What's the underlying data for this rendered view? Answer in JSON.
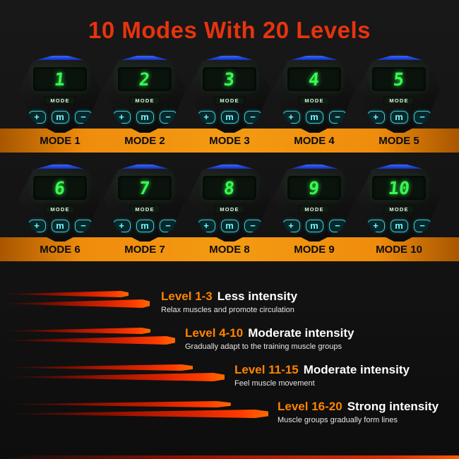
{
  "title": "10 Modes With 20 Levels",
  "device_ui": {
    "screen_label": "MODE",
    "plus": "+",
    "menu": "m",
    "minus": "−"
  },
  "modes": [
    {
      "number": "1",
      "label": "MODE 1"
    },
    {
      "number": "2",
      "label": "MODE 2"
    },
    {
      "number": "3",
      "label": "MODE 3"
    },
    {
      "number": "4",
      "label": "MODE 4"
    },
    {
      "number": "5",
      "label": "MODE 5"
    },
    {
      "number": "6",
      "label": "MODE 6"
    },
    {
      "number": "7",
      "label": "MODE 7"
    },
    {
      "number": "8",
      "label": "MODE 8"
    },
    {
      "number": "9",
      "label": "MODE 9"
    },
    {
      "number": "10",
      "label": "MODE 10"
    }
  ],
  "levels": [
    {
      "range": "Level 1-3",
      "intensity": "Less intensity",
      "desc": "Relax muscles and promote circulation"
    },
    {
      "range": "Level 4-10",
      "intensity": "Moderate intensity",
      "desc": "Gradually adapt to the training muscle groups"
    },
    {
      "range": "Level 11-15",
      "intensity": "Moderate intensity",
      "desc": "Feel muscle movement"
    },
    {
      "range": "Level 16-20",
      "intensity": "Strong intensity",
      "desc": "Muscle groups gradually form lines"
    }
  ],
  "colors": {
    "title_red": "#e7330e",
    "band_orange": "#ef8c0c",
    "level_range_orange": "#ff8400",
    "digit_green": "#35ff4f",
    "button_cyan": "#3ecfd4",
    "accent_blue": "#1c3fd6"
  }
}
